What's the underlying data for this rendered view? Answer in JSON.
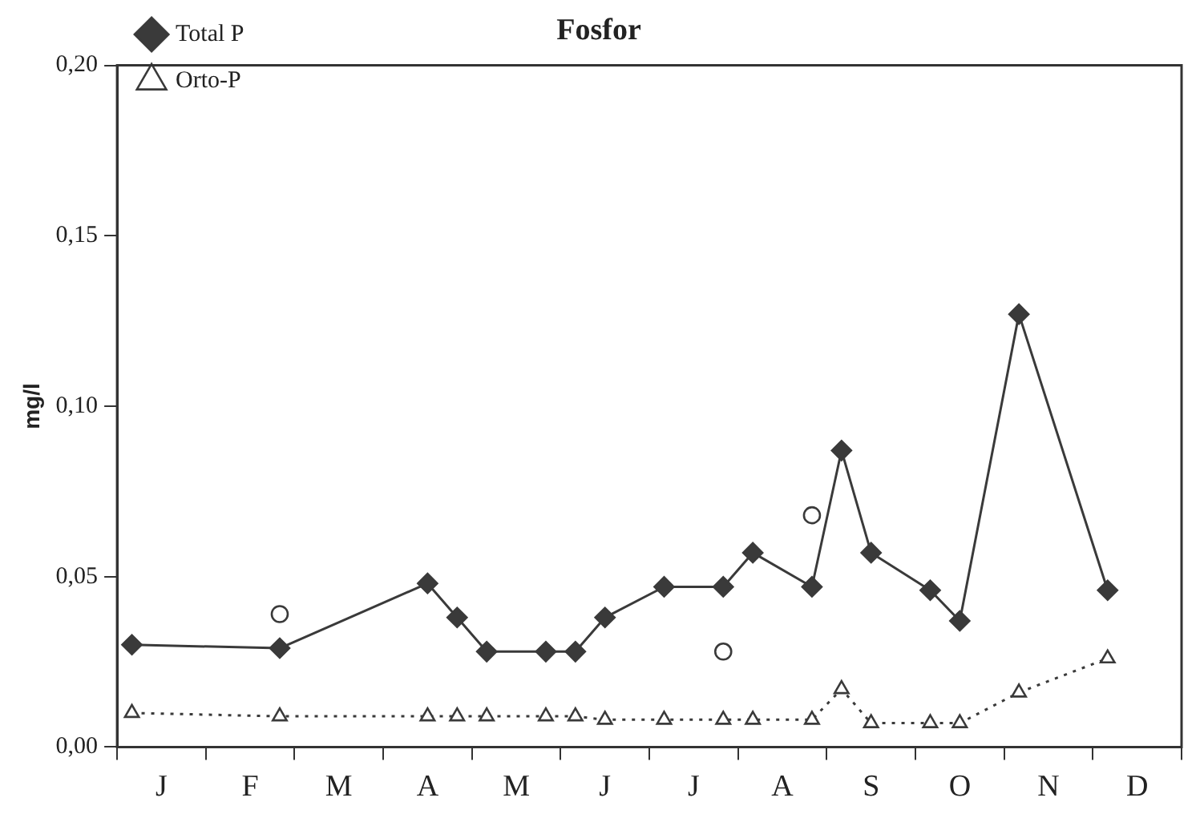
{
  "chart_data": {
    "type": "line",
    "title": "Fosfor",
    "ylabel": "mg/l",
    "categories": [
      null,
      "J",
      null,
      null,
      "F",
      null,
      null,
      "M",
      null,
      null,
      "A",
      null,
      null,
      "M",
      null,
      null,
      "J",
      null,
      null,
      "J",
      null,
      null,
      "A",
      null,
      null,
      "S",
      null,
      null,
      "O",
      null,
      null,
      "N",
      null,
      null,
      "D",
      null
    ],
    "ylim": [
      0,
      0.2
    ],
    "yticks": [
      {
        "value": 0,
        "label": "0,00"
      },
      {
        "value": 0.05,
        "label": "0,05"
      },
      {
        "value": 0.1,
        "label": "0,10"
      },
      {
        "value": 0.15,
        "label": "0,15"
      },
      {
        "value": 0.2,
        "label": "0,20"
      }
    ],
    "grid": false,
    "legend": "top left",
    "series": [
      {
        "name": "Total P",
        "color": "#3a3a3a",
        "marker": "diamond",
        "line_style": "solid",
        "values": [
          0.03,
          null,
          null,
          null,
          null,
          0.029,
          null,
          null,
          null,
          null,
          0.048,
          0.038,
          0.028,
          null,
          0.028,
          0.028,
          0.038,
          null,
          0.047,
          null,
          0.047,
          0.057,
          null,
          0.047,
          0.087,
          0.057,
          null,
          0.046,
          0.037,
          null,
          0.127,
          null,
          null,
          0.046,
          null,
          null
        ]
      },
      {
        "name": "Orto-P",
        "color": "#3a3a3a",
        "marker": "triangle",
        "line_style": "dotted",
        "values": [
          0.01,
          null,
          null,
          null,
          null,
          0.009,
          null,
          null,
          null,
          null,
          0.009,
          0.009,
          0.009,
          null,
          0.009,
          0.009,
          0.008,
          null,
          0.008,
          null,
          0.008,
          0.008,
          null,
          0.008,
          0.017,
          0.007,
          null,
          0.007,
          0.007,
          null,
          0.016,
          null,
          null,
          0.026,
          null,
          null
        ]
      },
      {
        "type": "scatter",
        "color": "#3a3a3a",
        "marker": "circle",
        "values": [
          null,
          null,
          null,
          null,
          null,
          0.039,
          null,
          null,
          null,
          null,
          null,
          null,
          null,
          null,
          null,
          null,
          null,
          null,
          null,
          null,
          0.028,
          null,
          null,
          0.068,
          null,
          null,
          null,
          null,
          null,
          null,
          null,
          null,
          null,
          null,
          null,
          null
        ]
      }
    ]
  }
}
